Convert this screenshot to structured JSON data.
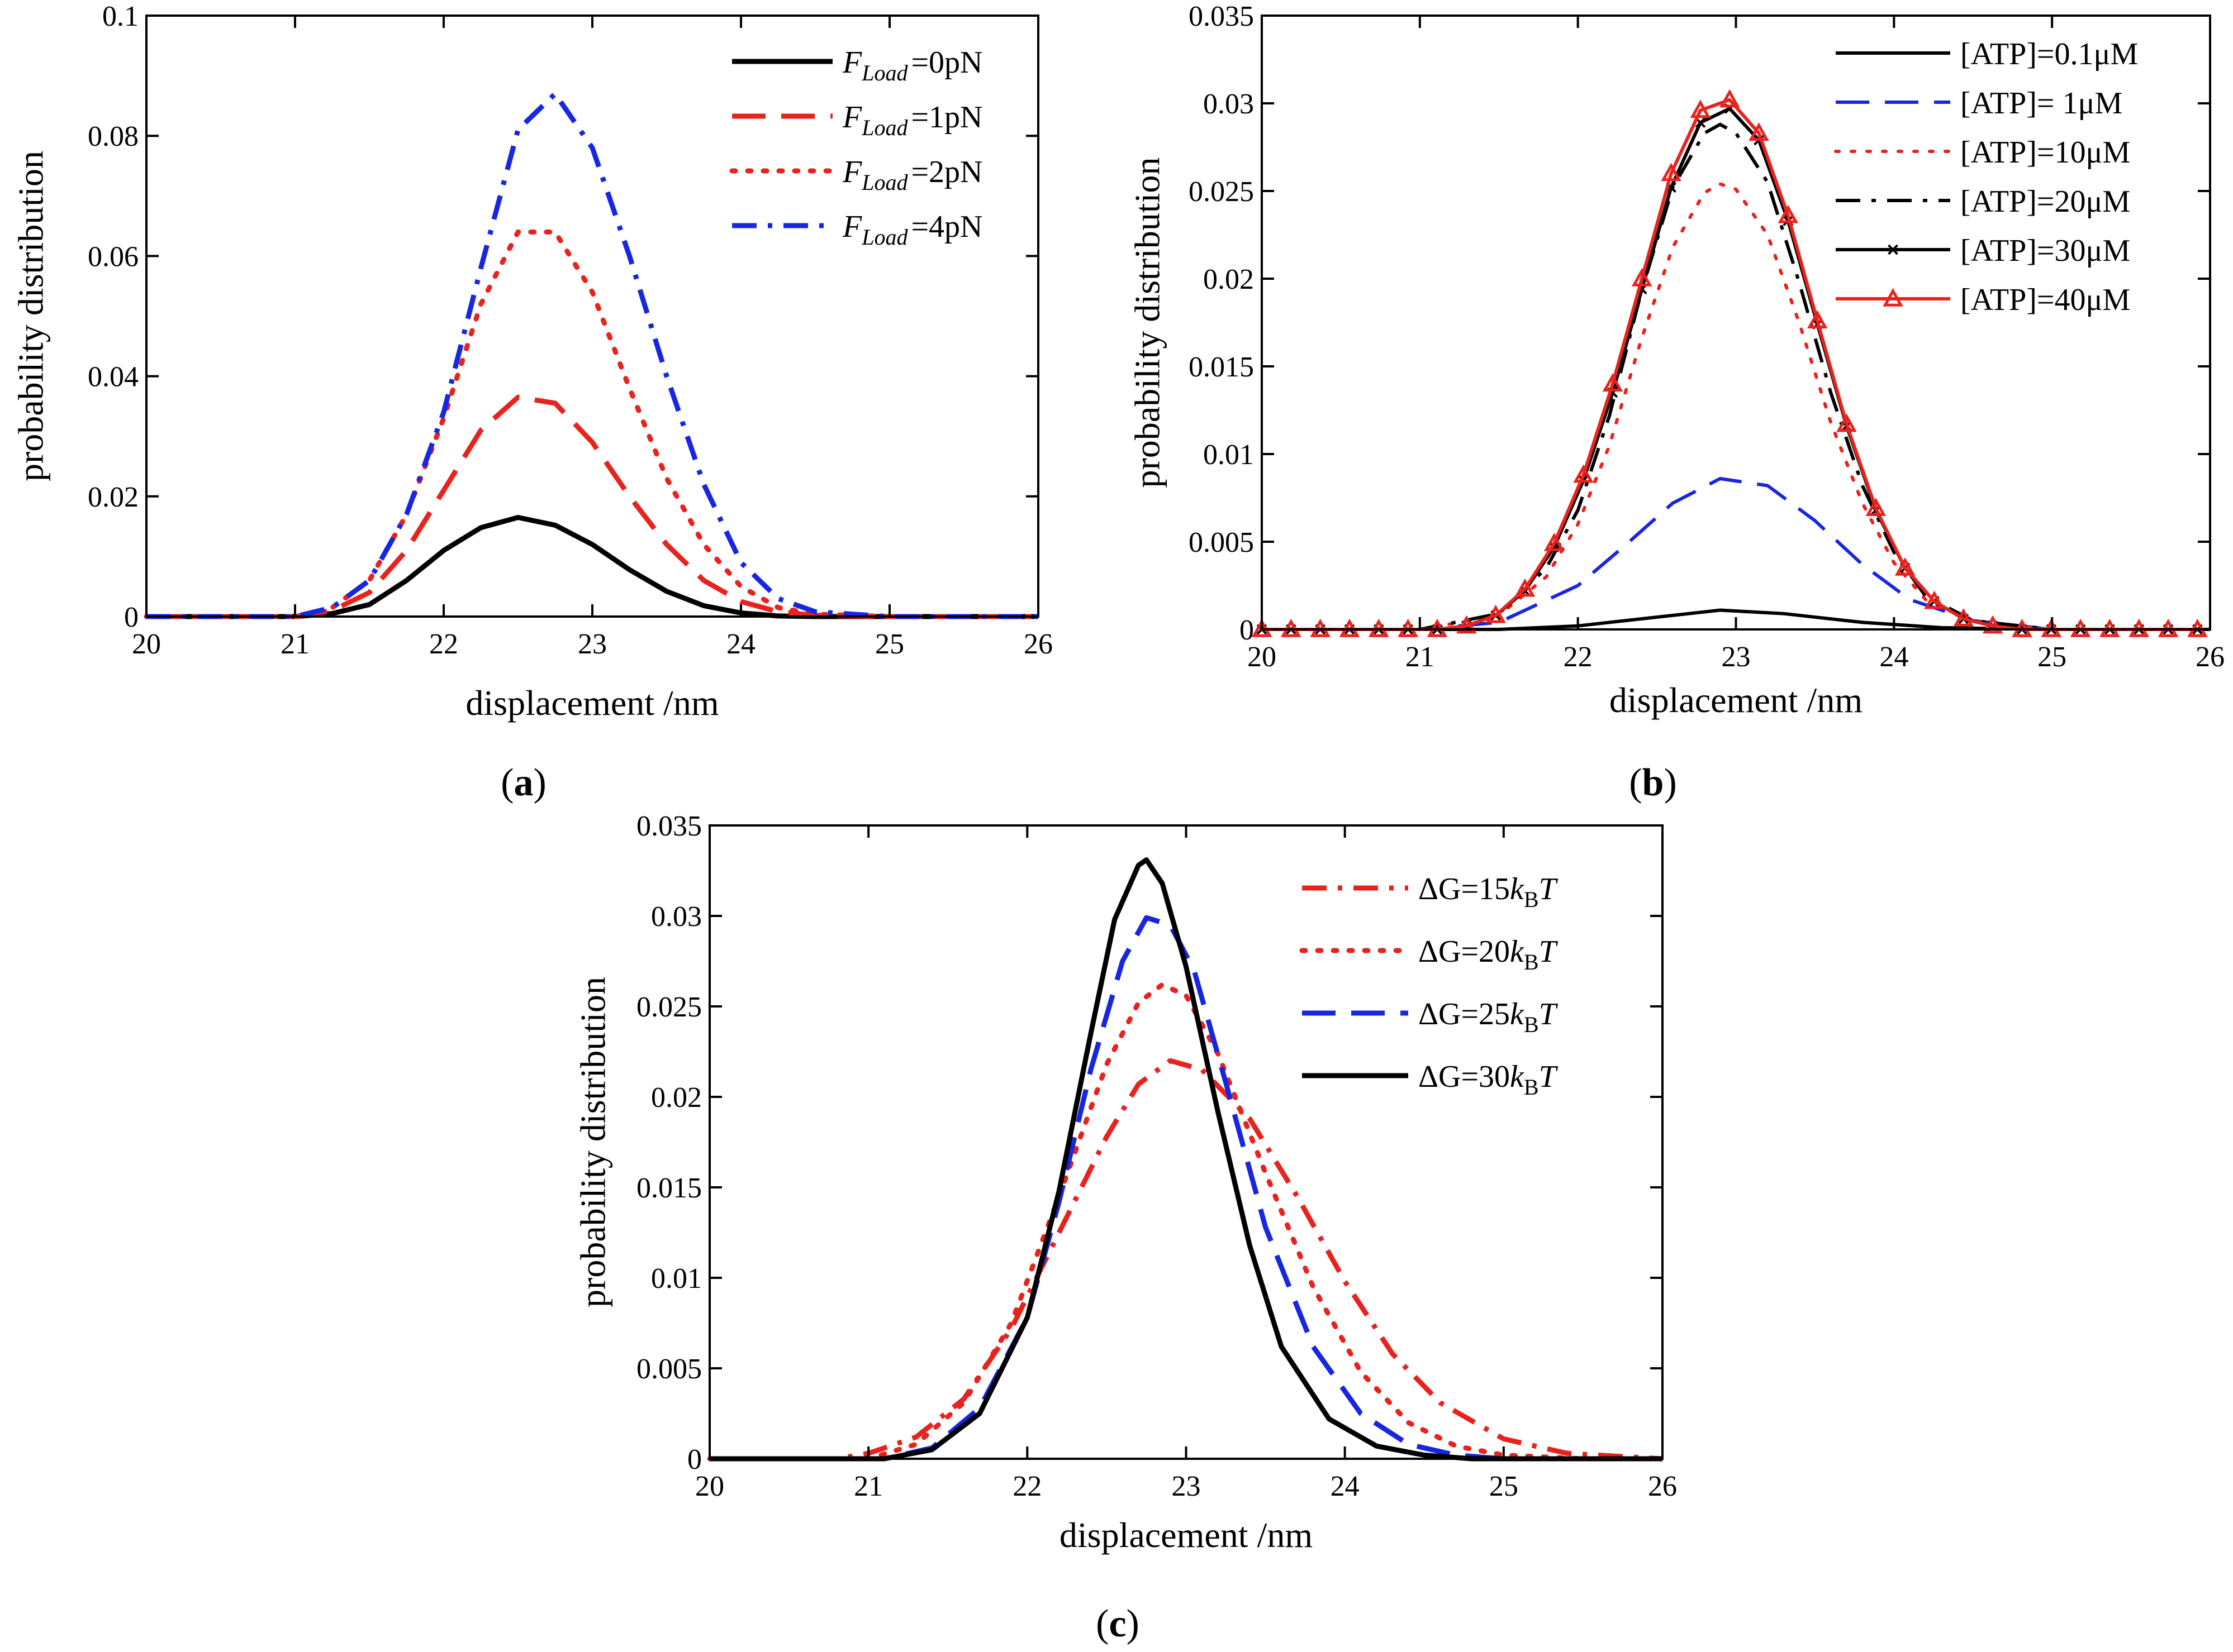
{
  "chart_data": [
    {
      "type": "line",
      "panel_label": "(a)",
      "xlabel": "displacement /nm",
      "ylabel": "probability distribution",
      "xlim": [
        20,
        26
      ],
      "ylim": [
        0,
        0.1
      ],
      "xticks": [
        "20",
        "21",
        "22",
        "23",
        "24",
        "25",
        "26"
      ],
      "yticks": [
        "0",
        "0.02",
        "0.04",
        "0.06",
        "0.08",
        "0.1"
      ],
      "legend_position": "top-right",
      "series": [
        {
          "legend_main": "F",
          "legend_sub": "Load",
          "legend_rest": "=0pN",
          "color": "#000000",
          "style": "solid",
          "x": [
            20,
            20.5,
            21,
            21.25,
            21.5,
            21.75,
            22,
            22.25,
            22.5,
            22.75,
            23,
            23.25,
            23.5,
            23.75,
            24,
            24.25,
            24.5,
            25,
            26
          ],
          "y": [
            0,
            0,
            0,
            0.0005,
            0.002,
            0.006,
            0.011,
            0.0148,
            0.0165,
            0.0152,
            0.012,
            0.0078,
            0.0042,
            0.0018,
            0.0006,
            0.0001,
            0,
            0,
            0
          ]
        },
        {
          "legend_main": "F",
          "legend_sub": "Load",
          "legend_rest": "=1pN",
          "color": "#e8221d",
          "style": "dash",
          "x": [
            20,
            20.5,
            21,
            21.25,
            21.5,
            21.75,
            22,
            22.25,
            22.5,
            22.75,
            23,
            23.25,
            23.5,
            23.75,
            24,
            24.25,
            24.5,
            25,
            26
          ],
          "y": [
            0,
            0,
            0,
            0.001,
            0.004,
            0.011,
            0.021,
            0.031,
            0.0365,
            0.0355,
            0.029,
            0.02,
            0.012,
            0.006,
            0.0025,
            0.0008,
            0.0002,
            0,
            0
          ]
        },
        {
          "legend_main": "F",
          "legend_sub": "Load",
          "legend_rest": "=2pN",
          "color": "#e8221d",
          "style": "dot",
          "x": [
            20,
            20.5,
            21,
            21.25,
            21.5,
            21.75,
            22,
            22.25,
            22.5,
            22.75,
            23,
            23.25,
            23.5,
            23.75,
            24,
            24.25,
            24.5,
            25,
            26
          ],
          "y": [
            0,
            0,
            0,
            0.0015,
            0.006,
            0.017,
            0.033,
            0.052,
            0.064,
            0.064,
            0.054,
            0.038,
            0.023,
            0.012,
            0.005,
            0.0015,
            0.0004,
            0,
            0
          ]
        },
        {
          "legend_main": "F",
          "legend_sub": "Load",
          "legend_rest": "=4pN",
          "color": "#1726e0",
          "style": "dashdot",
          "x": [
            20,
            20.5,
            21,
            21.25,
            21.5,
            21.75,
            22,
            22.25,
            22.5,
            22.75,
            23,
            23.25,
            23.5,
            23.75,
            24,
            24.25,
            24.5,
            25,
            26
          ],
          "y": [
            0,
            0,
            0,
            0.0015,
            0.006,
            0.017,
            0.034,
            0.058,
            0.081,
            0.087,
            0.078,
            0.06,
            0.04,
            0.022,
            0.009,
            0.003,
            0.0008,
            0,
            0
          ]
        }
      ]
    },
    {
      "type": "line",
      "panel_label": "(b)",
      "xlabel": "displacement /nm",
      "ylabel": "probability distribution",
      "xlim": [
        20,
        26
      ],
      "ylim": [
        0,
        0.035
      ],
      "xticks": [
        "20",
        "21",
        "22",
        "23",
        "24",
        "25",
        "26"
      ],
      "yticks": [
        "0",
        "0.005",
        "0.01",
        "0.015",
        "0.02",
        "0.025",
        "0.03",
        "0.035"
      ],
      "legend_position": "top-right",
      "series": [
        {
          "legend": "[ATP]=0.1μM",
          "color": "#000000",
          "style": "solid",
          "marker": "none",
          "x": [
            20,
            21.5,
            22,
            22.5,
            22.9,
            23.3,
            23.8,
            24.3,
            25,
            26
          ],
          "y": [
            0,
            0,
            0.0002,
            0.0007,
            0.0011,
            0.0009,
            0.0004,
            0.0001,
            0,
            0
          ]
        },
        {
          "legend": "[ATP]= 1μM",
          "color": "#1726e0",
          "style": "dash",
          "marker": "none",
          "x": [
            20,
            21,
            21.5,
            22,
            22.3,
            22.6,
            22.9,
            23.2,
            23.5,
            23.8,
            24.1,
            24.5,
            25,
            26
          ],
          "y": [
            0,
            0,
            0.0004,
            0.0025,
            0.0048,
            0.0072,
            0.0086,
            0.0082,
            0.0062,
            0.0037,
            0.0017,
            0.0005,
            0,
            0
          ]
        },
        {
          "legend": "[ATP]=10μM",
          "color": "#e8221d",
          "style": "dot",
          "marker": "none",
          "x": [
            20,
            21,
            21.5,
            21.8,
            22,
            22.2,
            22.4,
            22.6,
            22.8,
            22.9,
            23,
            23.2,
            23.4,
            23.6,
            23.8,
            24,
            24.2,
            24.5,
            25,
            26
          ],
          "y": [
            0,
            0,
            0.0008,
            0.003,
            0.006,
            0.0105,
            0.0165,
            0.0218,
            0.0249,
            0.0254,
            0.0251,
            0.0225,
            0.0175,
            0.0118,
            0.0072,
            0.0038,
            0.0017,
            0.0005,
            0,
            0
          ]
        },
        {
          "legend": "[ATP]=20μM",
          "color": "#000000",
          "style": "dashdot",
          "marker": "none",
          "x": [
            20,
            21,
            21.5,
            21.8,
            22,
            22.2,
            22.4,
            22.6,
            22.8,
            22.9,
            23,
            23.2,
            23.4,
            23.6,
            23.8,
            24,
            24.2,
            24.5,
            25,
            26
          ],
          "y": [
            0,
            0,
            0.0009,
            0.0035,
            0.0068,
            0.0122,
            0.0192,
            0.0252,
            0.0283,
            0.0288,
            0.0283,
            0.0255,
            0.0198,
            0.0135,
            0.0082,
            0.0044,
            0.0019,
            0.0005,
            0,
            0
          ]
        },
        {
          "legend": "[ATP]=30μM",
          "color": "#000000",
          "style": "solid",
          "marker": "x",
          "x": [
            20,
            20.185,
            20.37,
            20.555,
            20.74,
            20.925,
            21.11,
            21.295,
            21.48,
            21.665,
            21.85,
            22.035,
            22.22,
            22.405,
            22.59,
            22.775,
            22.96,
            23.145,
            23.33,
            23.515,
            23.7,
            23.885,
            24.07,
            24.255,
            24.44,
            24.625,
            24.81,
            24.995,
            25.18,
            25.365,
            25.55,
            25.735,
            25.92
          ],
          "y": [
            0,
            0,
            0,
            0,
            0,
            0,
            0,
            0.0002,
            0.0008,
            0.0022,
            0.0047,
            0.0085,
            0.0135,
            0.0194,
            0.0252,
            0.0289,
            0.0297,
            0.0279,
            0.0233,
            0.0174,
            0.0116,
            0.0068,
            0.0035,
            0.0016,
            0.0006,
            0.0002,
            0,
            0,
            0,
            0,
            0,
            0,
            0
          ]
        },
        {
          "legend": "[ATP]=40μM",
          "color": "#e8221d",
          "style": "solid",
          "marker": "triangle",
          "x": [
            20,
            20.185,
            20.37,
            20.555,
            20.74,
            20.925,
            21.11,
            21.295,
            21.48,
            21.665,
            21.85,
            22.035,
            22.22,
            22.405,
            22.59,
            22.775,
            22.96,
            23.145,
            23.33,
            23.515,
            23.7,
            23.885,
            24.07,
            24.255,
            24.44,
            24.625,
            24.81,
            24.995,
            25.18,
            25.365,
            25.55,
            25.735,
            25.92
          ],
          "y": [
            0,
            0,
            0,
            0,
            0,
            0,
            0,
            0.0002,
            0.0008,
            0.0023,
            0.0049,
            0.0088,
            0.014,
            0.02,
            0.026,
            0.0296,
            0.0302,
            0.0283,
            0.0236,
            0.0176,
            0.0117,
            0.0069,
            0.0035,
            0.0016,
            0.0006,
            0.0002,
            0,
            0,
            0,
            0,
            0,
            0,
            0
          ]
        }
      ]
    },
    {
      "type": "line",
      "panel_label": "(c)",
      "xlabel": "displacement /nm",
      "ylabel": "probability distribution",
      "xlim": [
        20,
        26
      ],
      "ylim": [
        0,
        0.035
      ],
      "xticks": [
        "20",
        "21",
        "22",
        "23",
        "24",
        "25",
        "26"
      ],
      "yticks": [
        "0",
        "0.005",
        "0.01",
        "0.015",
        "0.02",
        "0.025",
        "0.03",
        "0.035"
      ],
      "legend_position": "top-right",
      "series": [
        {
          "legend_pre": "ΔG=15",
          "legend_k": "k",
          "legend_sub": "B",
          "legend_T": "T",
          "color": "#e8221d",
          "style": "dashdot",
          "x": [
            20,
            20.8,
            21,
            21.3,
            21.6,
            21.9,
            22.2,
            22.5,
            22.7,
            22.9,
            23.1,
            23.4,
            23.7,
            24,
            24.3,
            24.6,
            25,
            25.4,
            25.8,
            26
          ],
          "y": [
            0,
            0,
            0.0003,
            0.0012,
            0.0033,
            0.0072,
            0.0125,
            0.0178,
            0.0207,
            0.022,
            0.0215,
            0.0188,
            0.0145,
            0.0098,
            0.0058,
            0.0031,
            0.0011,
            0.0003,
            0.0001,
            0
          ]
        },
        {
          "legend_pre": "ΔG=20",
          "legend_k": "k",
          "legend_sub": "B",
          "legend_T": "T",
          "color": "#e8221d",
          "style": "dot",
          "x": [
            20,
            21,
            21.3,
            21.6,
            21.9,
            22.2,
            22.5,
            22.7,
            22.85,
            23,
            23.2,
            23.5,
            23.8,
            24.1,
            24.4,
            24.7,
            25,
            25.5,
            26
          ],
          "y": [
            0,
            0,
            0.0008,
            0.0031,
            0.0075,
            0.0145,
            0.0218,
            0.0252,
            0.0262,
            0.0256,
            0.0224,
            0.0158,
            0.0095,
            0.0048,
            0.002,
            0.0007,
            0.0002,
            0,
            0
          ]
        },
        {
          "legend_pre": "ΔG=25",
          "legend_k": "k",
          "legend_sub": "B",
          "legend_T": "T",
          "color": "#1726e0",
          "style": "dash",
          "x": [
            20,
            21.1,
            21.4,
            21.7,
            22,
            22.2,
            22.4,
            22.6,
            22.75,
            22.9,
            23.05,
            23.25,
            23.5,
            23.8,
            24.1,
            24.4,
            24.7,
            25,
            26
          ],
          "y": [
            0,
            0,
            0.0006,
            0.0028,
            0.0078,
            0.0142,
            0.0215,
            0.0275,
            0.0299,
            0.0295,
            0.027,
            0.0208,
            0.0128,
            0.0062,
            0.0025,
            0.0008,
            0.0002,
            0,
            0
          ]
        },
        {
          "legend_pre": "ΔG=30",
          "legend_k": "k",
          "legend_sub": "B",
          "legend_T": "T",
          "color": "#000000",
          "style": "solid",
          "x": [
            20,
            21.1,
            21.4,
            21.7,
            22,
            22.2,
            22.4,
            22.55,
            22.7,
            22.75,
            22.85,
            23,
            23.2,
            23.4,
            23.6,
            23.9,
            24.2,
            24.5,
            24.8,
            26
          ],
          "y": [
            0,
            0,
            0.0005,
            0.0025,
            0.0078,
            0.0148,
            0.0235,
            0.0298,
            0.0328,
            0.0331,
            0.0318,
            0.0272,
            0.0192,
            0.0118,
            0.0062,
            0.0022,
            0.0007,
            0.0002,
            0,
            0
          ]
        }
      ]
    }
  ]
}
